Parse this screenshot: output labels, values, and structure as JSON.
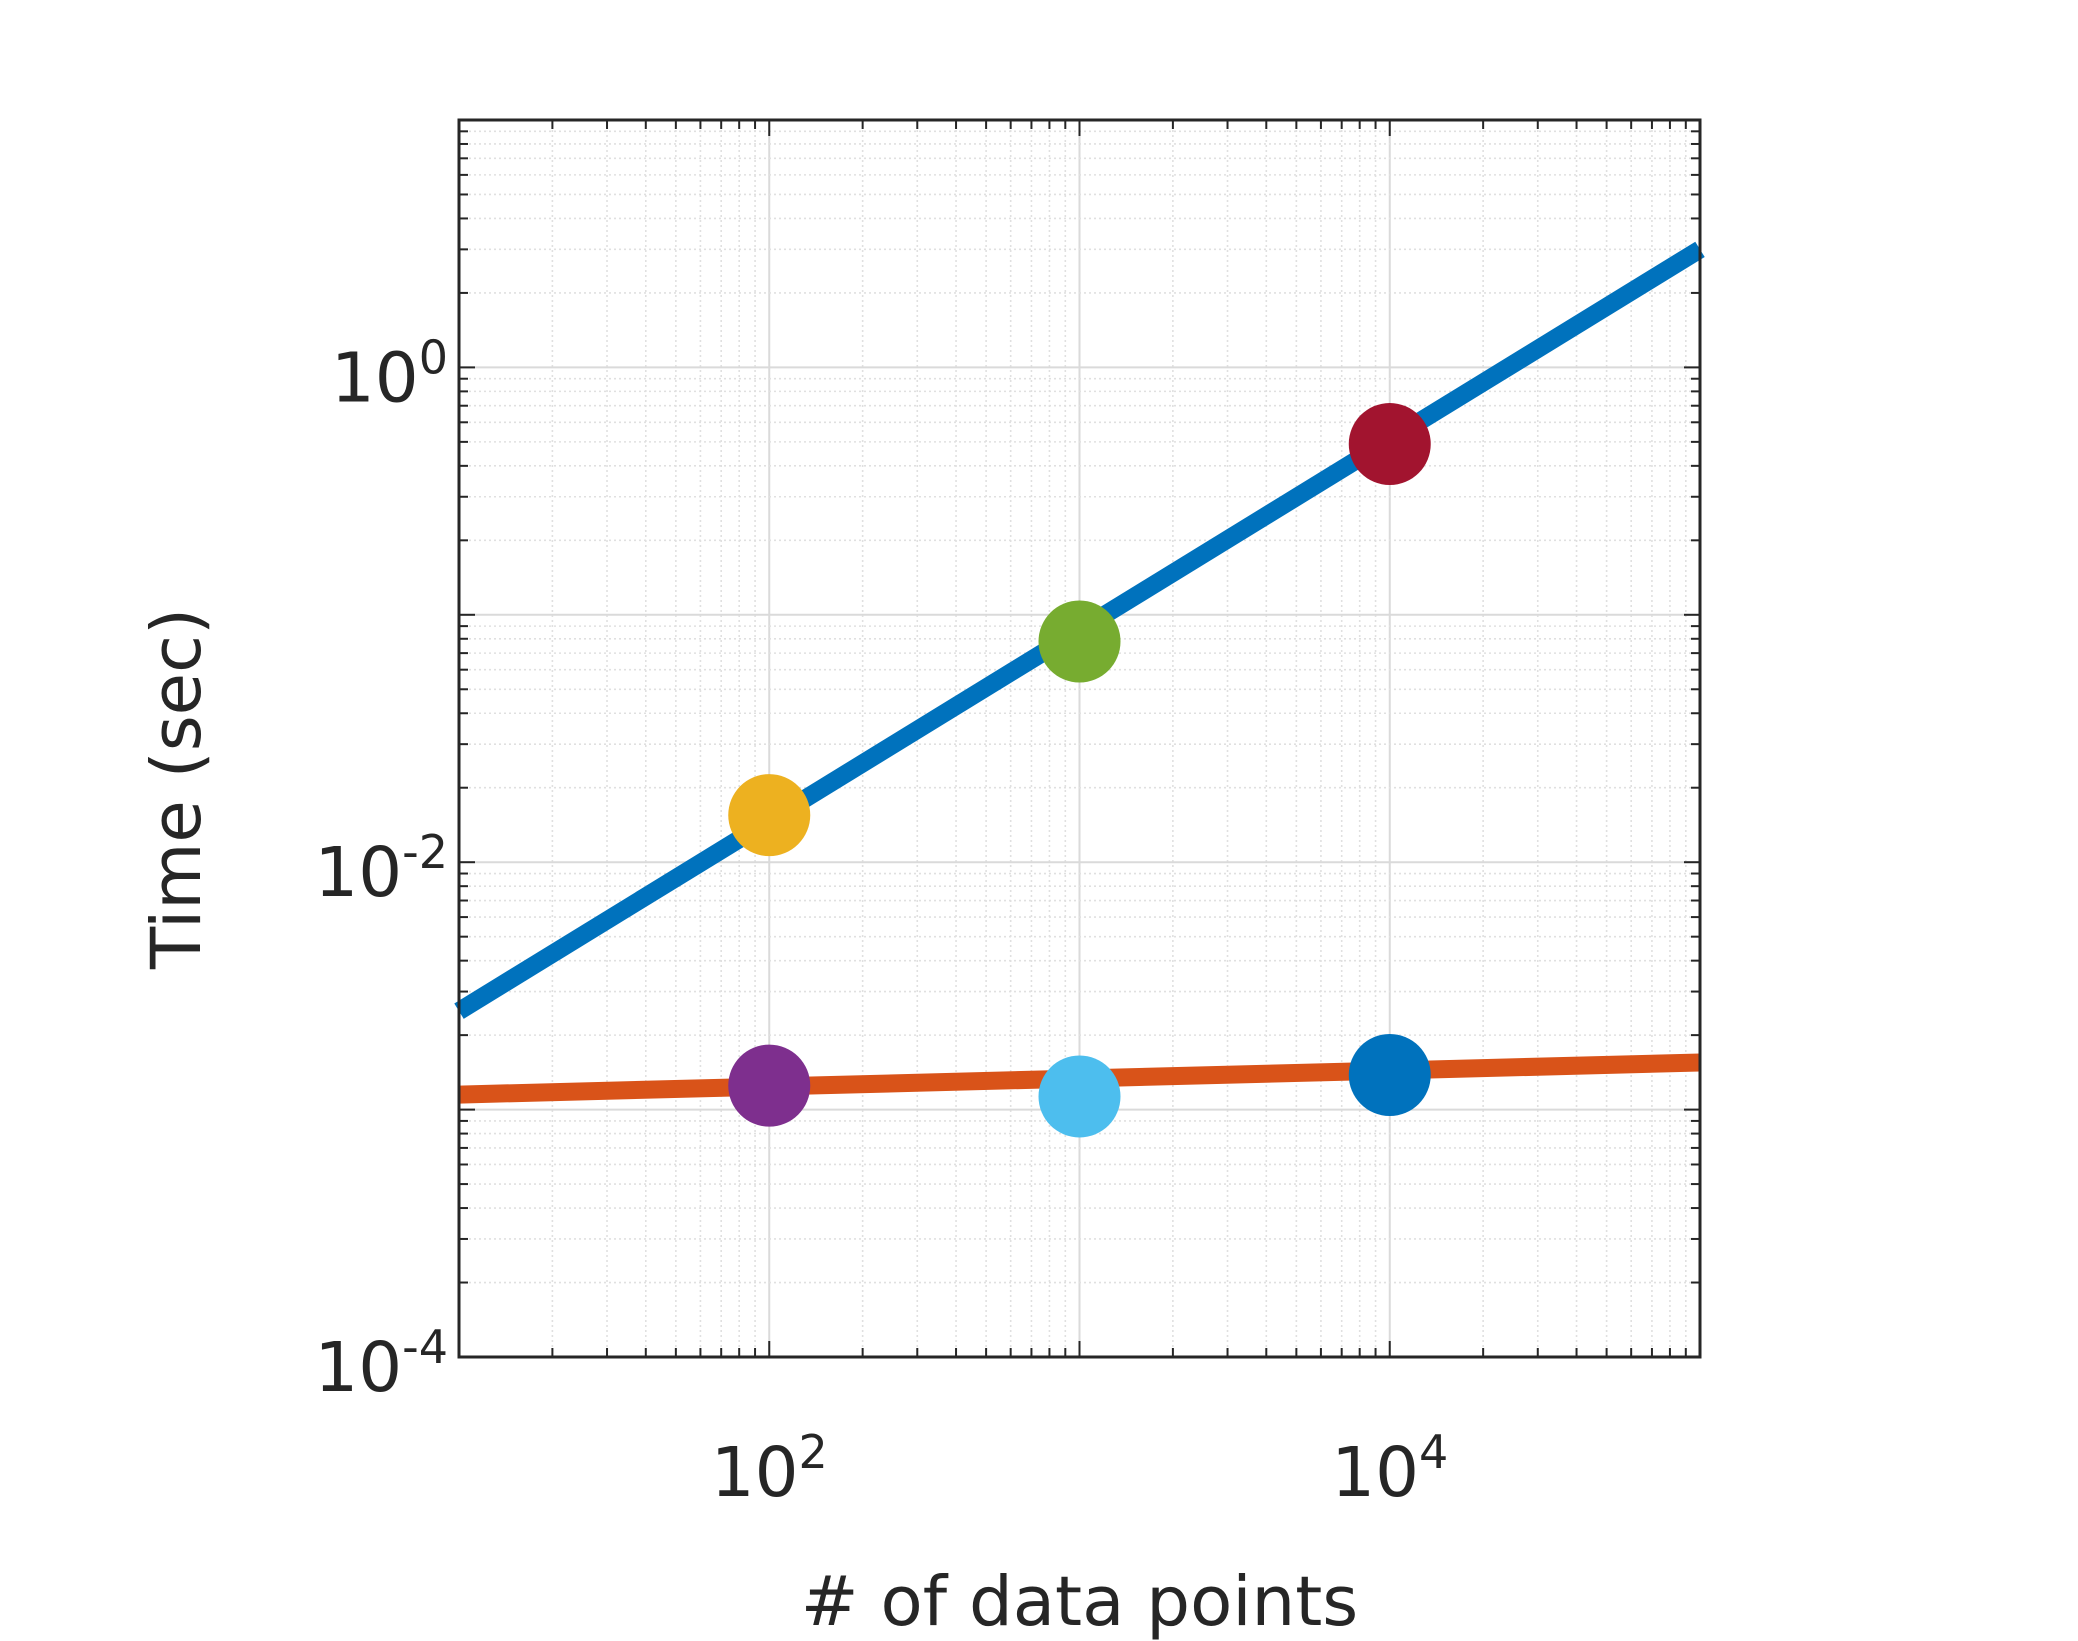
{
  "chart_data": {
    "type": "line",
    "title": "",
    "xlabel": "# of data points",
    "ylabel": "Time (sec)",
    "xscale": "log",
    "yscale": "log",
    "xlim": [
      10,
      100000
    ],
    "ylim": [
      0.0001,
      10
    ],
    "grid": true,
    "minor_grid": true,
    "x_ticks": [
      {
        "value": 100,
        "base": "10",
        "exp": "2"
      },
      {
        "value": 10000,
        "base": "10",
        "exp": "4"
      }
    ],
    "y_ticks": [
      {
        "value": 0.0001,
        "base": "10",
        "exp": "-4"
      },
      {
        "value": 0.01,
        "base": "10",
        "exp": "-2"
      },
      {
        "value": 1,
        "base": "10",
        "exp": "0"
      }
    ],
    "series": [
      {
        "color": "#0072BD",
        "x": [
          10,
          100000
        ],
        "y": [
          0.0025,
          3.0
        ]
      },
      {
        "color": "#D95319",
        "x": [
          10,
          100000
        ],
        "y": [
          0.00115,
          0.00155
        ]
      }
    ],
    "markers": [
      {
        "x": 100,
        "y": 0.0155,
        "color": "#EDB120"
      },
      {
        "x": 1000,
        "y": 0.078,
        "color": "#77AC30"
      },
      {
        "x": 10000,
        "y": 0.49,
        "color": "#A2142F"
      },
      {
        "x": 100,
        "y": 0.00125,
        "color": "#7E2F8E"
      },
      {
        "x": 1000,
        "y": 0.00113,
        "color": "#4DBEEE"
      },
      {
        "x": 10000,
        "y": 0.00138,
        "color": "#0072BD"
      }
    ]
  }
}
